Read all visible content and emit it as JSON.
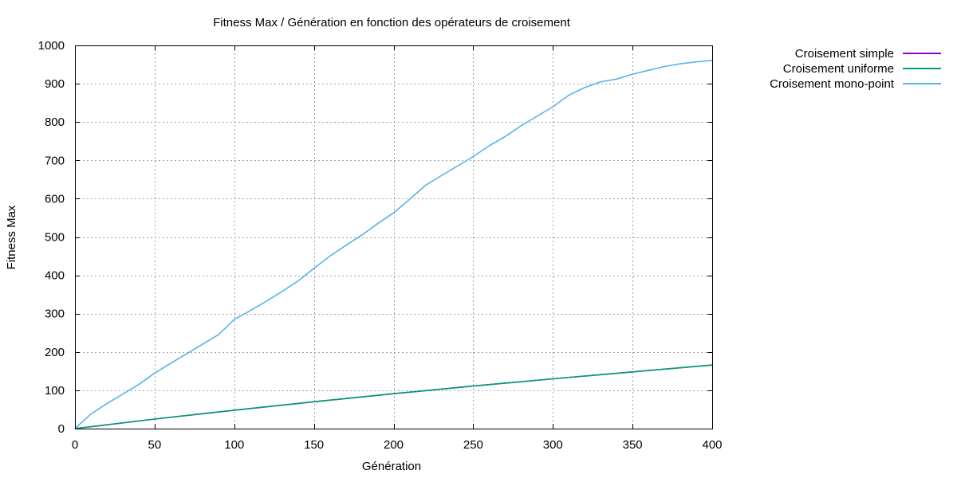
{
  "chart_data": {
    "type": "line",
    "title": "Fitness Max / Génération en fonction des opérateurs de croisement",
    "xlabel": "Génération",
    "ylabel": "Fitness Max",
    "xlim": [
      0,
      400
    ],
    "ylim": [
      0,
      1000
    ],
    "xticks": [
      "0",
      "50",
      "100",
      "150",
      "200",
      "250",
      "300",
      "350",
      "400"
    ],
    "yticks": [
      "0",
      "100",
      "200",
      "300",
      "400",
      "500",
      "600",
      "700",
      "800",
      "900",
      "1000"
    ],
    "grid": true,
    "legend_position": "top-right, outside plot",
    "series": [
      {
        "name": "Croisement simple",
        "color": "#9400d3",
        "x": [
          0,
          50,
          100,
          150,
          200,
          250,
          300,
          350,
          400
        ],
        "y": [
          0,
          25,
          48,
          70,
          91,
          111,
          130,
          148,
          166
        ]
      },
      {
        "name": "Croisement uniforme",
        "color": "#009e73",
        "x": [
          0,
          50,
          100,
          150,
          200,
          250,
          300,
          350,
          400
        ],
        "y": [
          0,
          25,
          48,
          70,
          91,
          111,
          130,
          148,
          166
        ]
      },
      {
        "name": "Croisement mono-point",
        "color": "#56b4e9",
        "x": [
          0,
          10,
          20,
          30,
          40,
          50,
          60,
          70,
          80,
          90,
          100,
          110,
          120,
          130,
          140,
          150,
          160,
          170,
          180,
          190,
          200,
          210,
          220,
          230,
          240,
          250,
          260,
          270,
          280,
          290,
          300,
          310,
          320,
          330,
          340,
          350,
          360,
          370,
          380,
          390,
          400
        ],
        "y": [
          0,
          38,
          65,
          90,
          115,
          145,
          170,
          195,
          220,
          245,
          285,
          308,
          332,
          358,
          385,
          418,
          450,
          478,
          505,
          535,
          563,
          598,
          635,
          660,
          685,
          710,
          738,
          762,
          790,
          815,
          840,
          870,
          890,
          905,
          912,
          925,
          935,
          945,
          952,
          957,
          961
        ]
      }
    ]
  }
}
